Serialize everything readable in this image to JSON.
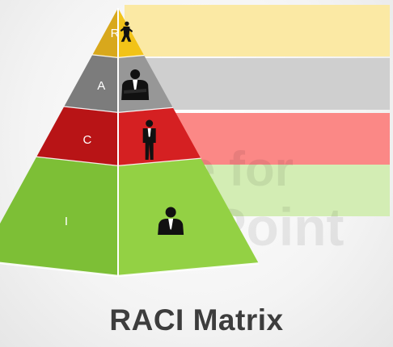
{
  "title": "RACI Matrix",
  "watermark": {
    "line1": "Made for",
    "line2": "PowerPoint"
  },
  "levels": [
    {
      "letter": "R",
      "icon": "person-running-icon",
      "left_color": "#d8a81c",
      "right_color": "#f2c318",
      "bar_color": "#fbe9a4"
    },
    {
      "letter": "A",
      "icon": "businessman-arms-crossed-icon",
      "left_color": "#7c7c7c",
      "right_color": "#979797",
      "bar_color": "#cfcfcf"
    },
    {
      "letter": "C",
      "icon": "businessman-standing-icon",
      "left_color": "#b81416",
      "right_color": "#d52022",
      "bar_color": "#fb8886"
    },
    {
      "letter": "I",
      "icon": "businessman-portrait-icon",
      "left_color": "#7dbf36",
      "right_color": "#93d144",
      "bar_color": "#d3edb4"
    }
  ]
}
